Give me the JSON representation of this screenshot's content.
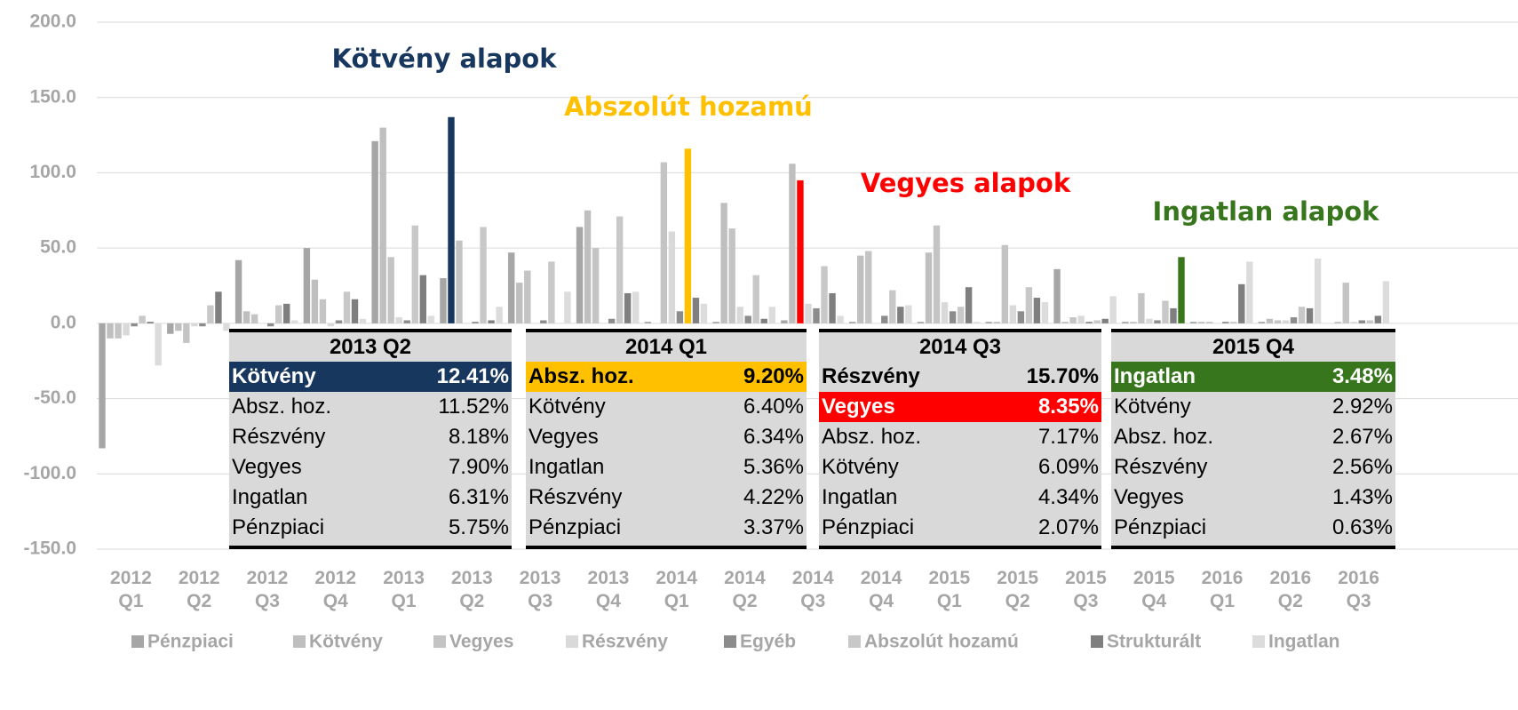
{
  "chart_data": {
    "type": "bar",
    "categories": [
      "2012 Q1",
      "2012 Q2",
      "2012 Q3",
      "2012 Q4",
      "2013 Q1",
      "2013 Q2",
      "2013 Q3",
      "2013 Q4",
      "2014 Q1",
      "2014 Q2",
      "2014 Q3",
      "2014 Q4",
      "2015 Q1",
      "2015 Q2",
      "2015 Q3",
      "2015 Q4",
      "2016 Q1",
      "2016 Q2",
      "2016 Q3"
    ],
    "series": [
      {
        "name": "Pénzpiaci",
        "color": "#a6a6a6",
        "values": [
          -83,
          -7,
          42,
          50,
          121,
          30,
          47,
          64,
          1,
          1,
          2,
          1,
          1,
          1,
          36,
          1,
          1,
          1,
          0
        ]
      },
      {
        "name": "Kötvény",
        "color": "#bfbfbf",
        "values": [
          -10,
          -5,
          8,
          29,
          130,
          137,
          27,
          75,
          0,
          80,
          106,
          45,
          47,
          1,
          1,
          1,
          1,
          3,
          1
        ]
      },
      {
        "name": "Vegyes",
        "color": "#c4c4c4",
        "values": [
          -10,
          -13,
          6,
          16,
          44,
          55,
          35,
          50,
          107,
          63,
          95,
          48,
          65,
          52,
          4,
          20,
          1,
          2,
          27
        ]
      },
      {
        "name": "Részvény",
        "color": "#d9d9d9",
        "values": [
          -8,
          -2,
          0,
          -2,
          4,
          0,
          0,
          0,
          61,
          11,
          13,
          0,
          14,
          12,
          5,
          3,
          0,
          2,
          1
        ]
      },
      {
        "name": "Egyéb",
        "color": "#8c8c8c",
        "values": [
          -2,
          -2,
          -2,
          2,
          2,
          1,
          2,
          3,
          8,
          5,
          10,
          5,
          8,
          8,
          1,
          2,
          1,
          4,
          2
        ]
      },
      {
        "name": "Abszolút hozamú",
        "color": "#c8c8c8",
        "values": [
          5,
          12,
          12,
          21,
          65,
          64,
          41,
          71,
          116,
          32,
          38,
          22,
          11,
          24,
          2,
          15,
          1,
          11,
          2
        ]
      },
      {
        "name": "Strukturált",
        "color": "#7f7f7f",
        "values": [
          1,
          21,
          13,
          16,
          32,
          2,
          0,
          20,
          17,
          3,
          20,
          11,
          24,
          17,
          3,
          10,
          26,
          10,
          5
        ]
      },
      {
        "name": "Ingatlan",
        "color": "#dcdcdc",
        "values": [
          -28,
          -5,
          2,
          3,
          5,
          11,
          21,
          21,
          13,
          11,
          5,
          12,
          1,
          14,
          18,
          44,
          41,
          43,
          28
        ]
      }
    ],
    "ylim": [
      -150,
      200
    ],
    "yticks": [
      {
        "value": -150,
        "label": "-150.0"
      },
      {
        "value": -100,
        "label": "-100.0"
      },
      {
        "value": -50,
        "label": "-50.0"
      },
      {
        "value": 0,
        "label": "0.0"
      },
      {
        "value": 50,
        "label": "50.0"
      },
      {
        "value": 100,
        "label": "100.0"
      },
      {
        "value": 150,
        "label": "150.0"
      },
      {
        "value": 200,
        "label": "200.0"
      }
    ],
    "grid": true,
    "legend": "bottom",
    "annotations": [
      {
        "text": "Kötvény alapok",
        "color": "#17375e",
        "series": "Kötvény",
        "category": "2013 Q2"
      },
      {
        "text": "Abszolút hozamú",
        "color": "#ffc000",
        "series": "Abszolút hozamú",
        "category": "2014 Q1"
      },
      {
        "text": "Vegyes alapok",
        "color": "#ff0000",
        "series": "Vegyes",
        "category": "2014 Q3"
      },
      {
        "text": "Ingatlan alapok",
        "color": "#38761d",
        "series": "Ingatlan",
        "category": "2015 Q4"
      }
    ]
  },
  "tables": [
    {
      "title": "2013 Q2",
      "rows": [
        {
          "fund": "Kötvény",
          "return": "12.41%",
          "color": "#17375e",
          "text_color": "#ffffff"
        },
        {
          "fund": "Absz. hoz.",
          "return": "11.52%"
        },
        {
          "fund": "Részvény",
          "return": "8.18%"
        },
        {
          "fund": "Vegyes",
          "return": "7.90%"
        },
        {
          "fund": "Ingatlan",
          "return": "6.31%"
        },
        {
          "fund": "Pénzpiaci",
          "return": "5.75%"
        }
      ]
    },
    {
      "title": "2014 Q1",
      "rows": [
        {
          "fund": "Absz. hoz.",
          "return": "9.20%",
          "color": "#ffc000",
          "text_color": "#000000"
        },
        {
          "fund": "Kötvény",
          "return": "6.40%"
        },
        {
          "fund": "Vegyes",
          "return": "6.34%"
        },
        {
          "fund": "Ingatlan",
          "return": "5.36%"
        },
        {
          "fund": "Részvény",
          "return": "4.22%"
        },
        {
          "fund": "Pénzpiaci",
          "return": "3.37%"
        }
      ]
    },
    {
      "title": "2014 Q3",
      "rows": [
        {
          "fund": "Részvény",
          "return": "15.70%"
        },
        {
          "fund": "Vegyes",
          "return": "8.35%",
          "color": "#ff0000",
          "text_color": "#ffffff"
        },
        {
          "fund": "Absz. hoz.",
          "return": "7.17%"
        },
        {
          "fund": "Kötvény",
          "return": "6.09%"
        },
        {
          "fund": "Ingatlan",
          "return": "4.34%"
        },
        {
          "fund": "Pénzpiaci",
          "return": "2.07%"
        }
      ]
    },
    {
      "title": "2015 Q4",
      "rows": [
        {
          "fund": "Ingatlan",
          "return": "3.48%",
          "color": "#38761d",
          "text_color": "#ffffff"
        },
        {
          "fund": "Kötvény",
          "return": "2.92%"
        },
        {
          "fund": "Absz. hoz.",
          "return": "2.67%"
        },
        {
          "fund": "Részvény",
          "return": "2.56%"
        },
        {
          "fund": "Vegyes",
          "return": "1.43%"
        },
        {
          "fund": "Pénzpiaci",
          "return": "0.63%"
        }
      ]
    }
  ]
}
